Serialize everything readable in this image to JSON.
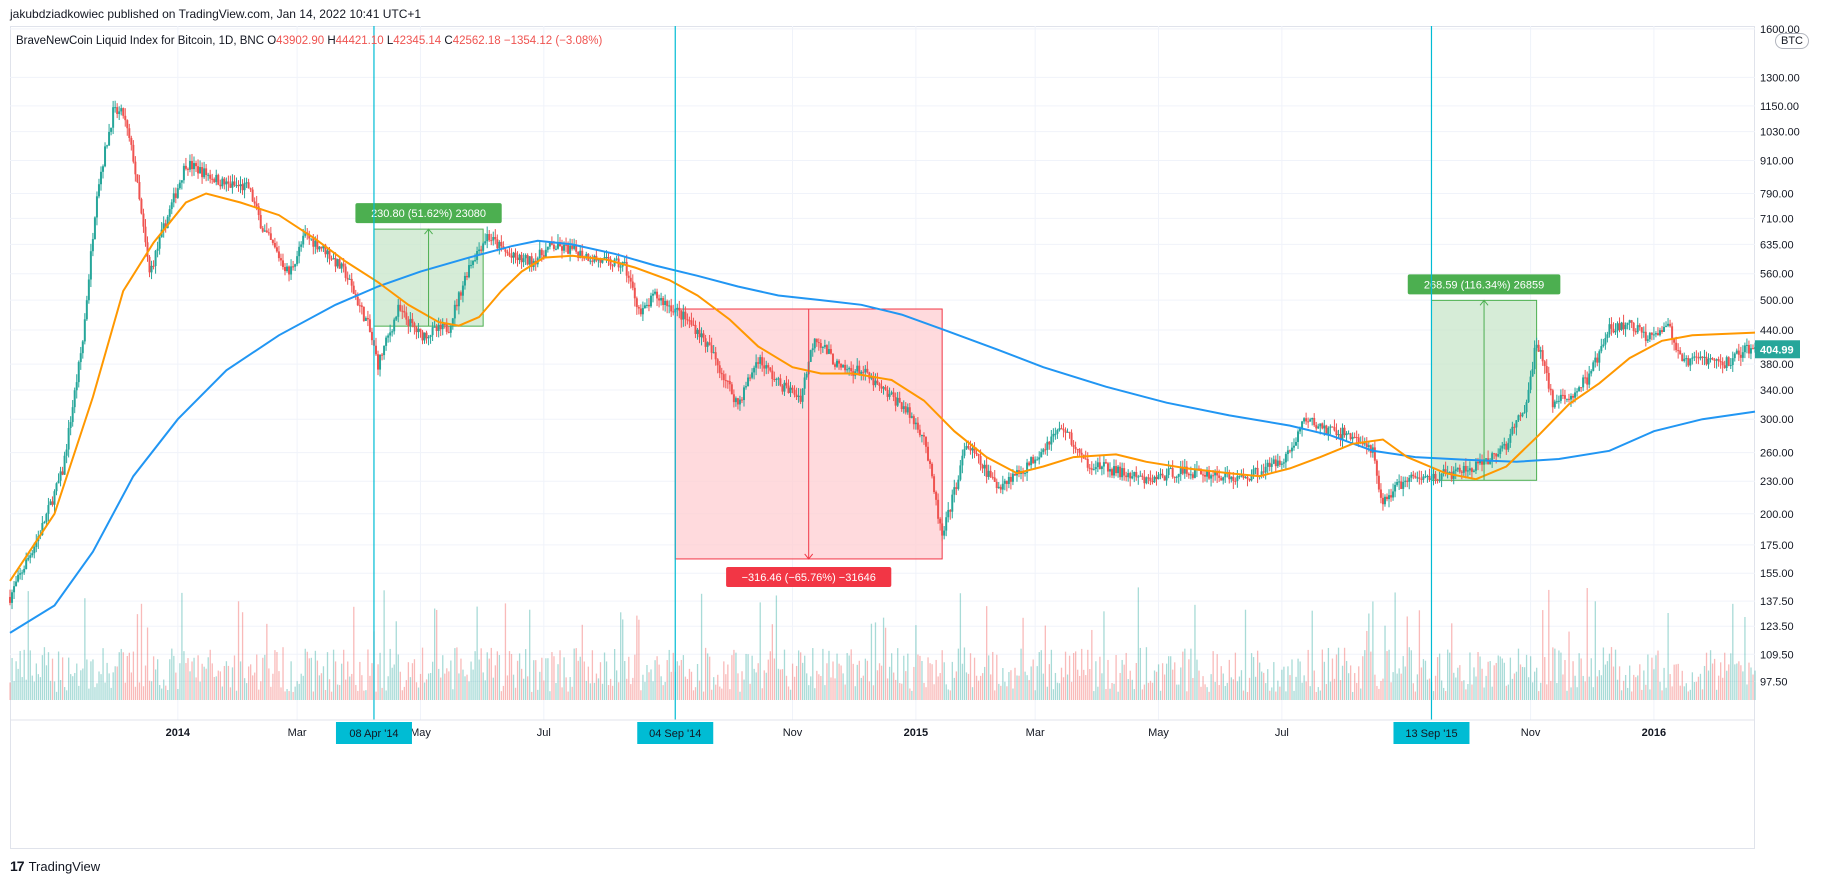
{
  "header": {
    "publisher": "jakubdziadkowiec published on TradingView.com, Jan 14, 2022 10:41 UTC+1",
    "symbol": "BraveNewCoin Liquid Index for Bitcoin, 1D, BNC",
    "open_label": "O",
    "open": "43902.90",
    "high_label": "H",
    "high": "44421.10",
    "low_label": "L",
    "low": "42345.14",
    "close_label": "C",
    "close": "42562.18",
    "change": "−1354.12 (−3.08%)"
  },
  "footer": {
    "brand_mark": "17",
    "brand": "TradingView"
  },
  "currency_tag": "BTC",
  "colors": {
    "ema_short": "#ff9800",
    "ema_long": "#2196f3",
    "up": "#26a69a",
    "down": "#ef5350",
    "vline": "#00bcd4",
    "gain_fill": "#c8e6c9",
    "loss_fill": "#ffcdd2",
    "gain_label": "#4caf50",
    "loss_label": "#f23645",
    "last_price_bg": "#26a69a"
  },
  "chart_data": {
    "type": "candlestick",
    "scale": "log",
    "x_range": [
      "2013-10-10",
      "2016-02-20"
    ],
    "y_range": [
      90,
      1620
    ],
    "y_ticks": [
      "1600.00",
      "1300.00",
      "1150.00",
      "1030.00",
      "910.00",
      "790.00",
      "710.00",
      "635.00",
      "560.00",
      "500.00",
      "440.00",
      "404.99",
      "380.00",
      "340.00",
      "300.00",
      "260.00",
      "230.00",
      "200.00",
      "175.00",
      "155.00",
      "137.50",
      "123.50",
      "109.50",
      "97.50"
    ],
    "y_tick_values": [
      1600,
      1300,
      1150,
      1030,
      910,
      790,
      710,
      635,
      560,
      500,
      440,
      380,
      340,
      300,
      260,
      230,
      200,
      175,
      155,
      137.5,
      123.5,
      109.5,
      97.5
    ],
    "x_ticks": [
      {
        "label": "2014",
        "date": "2014-01-01",
        "bold": true
      },
      {
        "label": "Mar",
        "date": "2014-03-01"
      },
      {
        "label": "May",
        "date": "2014-05-01"
      },
      {
        "label": "Jul",
        "date": "2014-07-01"
      },
      {
        "label": "Nov",
        "date": "2014-11-01"
      },
      {
        "label": "2015",
        "date": "2015-01-01",
        "bold": true
      },
      {
        "label": "Mar",
        "date": "2015-03-01"
      },
      {
        "label": "May",
        "date": "2015-05-01"
      },
      {
        "label": "Jul",
        "date": "2015-07-01"
      },
      {
        "label": "Nov",
        "date": "2015-11-01"
      },
      {
        "label": "2016",
        "date": "2016-01-01",
        "bold": true
      }
    ],
    "highlighted_dates": [
      {
        "label": "08 Apr '14",
        "date": "2014-04-08"
      },
      {
        "label": "04 Sep '14",
        "date": "2014-09-04"
      },
      {
        "label": "13 Sep '15",
        "date": "2015-09-13"
      }
    ],
    "price_path": [
      [
        "2013-10-10",
        140
      ],
      [
        "2013-10-25",
        185
      ],
      [
        "2013-11-05",
        240
      ],
      [
        "2013-11-15",
        420
      ],
      [
        "2013-11-22",
        800
      ],
      [
        "2013-11-30",
        1120
      ],
      [
        "2013-12-05",
        1110
      ],
      [
        "2013-12-10",
        920
      ],
      [
        "2013-12-18",
        560
      ],
      [
        "2013-12-25",
        680
      ],
      [
        "2014-01-05",
        900
      ],
      [
        "2014-01-15",
        860
      ],
      [
        "2014-01-25",
        820
      ],
      [
        "2014-02-05",
        810
      ],
      [
        "2014-02-12",
        680
      ],
      [
        "2014-02-25",
        560
      ],
      [
        "2014-03-05",
        660
      ],
      [
        "2014-03-15",
        620
      ],
      [
        "2014-03-25",
        560
      ],
      [
        "2014-04-05",
        450
      ],
      [
        "2014-04-10",
        380
      ],
      [
        "2014-04-20",
        480
      ],
      [
        "2014-05-01",
        430
      ],
      [
        "2014-05-15",
        445
      ],
      [
        "2014-05-25",
        580
      ],
      [
        "2014-06-03",
        660
      ],
      [
        "2014-06-15",
        600
      ],
      [
        "2014-06-25",
        590
      ],
      [
        "2014-07-05",
        630
      ],
      [
        "2014-07-15",
        620
      ],
      [
        "2014-07-30",
        590
      ],
      [
        "2014-08-10",
        580
      ],
      [
        "2014-08-18",
        470
      ],
      [
        "2014-08-25",
        510
      ],
      [
        "2014-09-04",
        480
      ],
      [
        "2014-09-15",
        440
      ],
      [
        "2014-09-22",
        400
      ],
      [
        "2014-10-05",
        320
      ],
      [
        "2014-10-15",
        390
      ],
      [
        "2014-10-25",
        350
      ],
      [
        "2014-11-05",
        330
      ],
      [
        "2014-11-12",
        430
      ],
      [
        "2014-11-25",
        370
      ],
      [
        "2014-12-05",
        370
      ],
      [
        "2014-12-15",
        340
      ],
      [
        "2014-12-25",
        320
      ],
      [
        "2015-01-05",
        280
      ],
      [
        "2015-01-14",
        180
      ],
      [
        "2015-01-20",
        220
      ],
      [
        "2015-01-26",
        270
      ],
      [
        "2015-02-10",
        225
      ],
      [
        "2015-02-25",
        245
      ],
      [
        "2015-03-10",
        280
      ],
      [
        "2015-03-15",
        290
      ],
      [
        "2015-03-25",
        250
      ],
      [
        "2015-04-10",
        240
      ],
      [
        "2015-04-25",
        230
      ],
      [
        "2015-05-10",
        240
      ],
      [
        "2015-05-25",
        238
      ],
      [
        "2015-06-10",
        232
      ],
      [
        "2015-06-25",
        245
      ],
      [
        "2015-07-05",
        260
      ],
      [
        "2015-07-12",
        300
      ],
      [
        "2015-07-25",
        285
      ],
      [
        "2015-08-05",
        280
      ],
      [
        "2015-08-15",
        260
      ],
      [
        "2015-08-19",
        210
      ],
      [
        "2015-08-30",
        230
      ],
      [
        "2015-09-13",
        235
      ],
      [
        "2015-09-25",
        238
      ],
      [
        "2015-10-10",
        248
      ],
      [
        "2015-10-20",
        270
      ],
      [
        "2015-10-30",
        320
      ],
      [
        "2015-11-04",
        420
      ],
      [
        "2015-11-08",
        380
      ],
      [
        "2015-11-12",
        320
      ],
      [
        "2015-11-20",
        330
      ],
      [
        "2015-11-30",
        360
      ],
      [
        "2015-12-10",
        440
      ],
      [
        "2015-12-20",
        450
      ],
      [
        "2015-12-28",
        430
      ],
      [
        "2016-01-08",
        450
      ],
      [
        "2016-01-15",
        380
      ],
      [
        "2016-01-25",
        390
      ],
      [
        "2016-02-05",
        380
      ],
      [
        "2016-02-15",
        405
      ]
    ],
    "ema_short_path": [
      [
        "2013-10-10",
        150
      ],
      [
        "2013-11-01",
        200
      ],
      [
        "2013-11-20",
        330
      ],
      [
        "2013-12-05",
        520
      ],
      [
        "2013-12-20",
        640
      ],
      [
        "2014-01-05",
        760
      ],
      [
        "2014-01-15",
        790
      ],
      [
        "2014-02-01",
        760
      ],
      [
        "2014-02-20",
        720
      ],
      [
        "2014-03-10",
        650
      ],
      [
        "2014-03-25",
        590
      ],
      [
        "2014-04-10",
        540
      ],
      [
        "2014-04-25",
        490
      ],
      [
        "2014-05-10",
        455
      ],
      [
        "2014-05-20",
        448
      ],
      [
        "2014-05-30",
        465
      ],
      [
        "2014-06-10",
        520
      ],
      [
        "2014-06-20",
        565
      ],
      [
        "2014-07-01",
        600
      ],
      [
        "2014-07-15",
        605
      ],
      [
        "2014-08-01",
        595
      ],
      [
        "2014-08-15",
        575
      ],
      [
        "2014-09-01",
        545
      ],
      [
        "2014-09-15",
        510
      ],
      [
        "2014-10-01",
        460
      ],
      [
        "2014-10-15",
        410
      ],
      [
        "2014-11-01",
        375
      ],
      [
        "2014-11-15",
        365
      ],
      [
        "2014-12-01",
        365
      ],
      [
        "2014-12-20",
        355
      ],
      [
        "2015-01-05",
        325
      ],
      [
        "2015-01-20",
        285
      ],
      [
        "2015-02-05",
        255
      ],
      [
        "2015-02-20",
        238
      ],
      [
        "2015-03-05",
        245
      ],
      [
        "2015-03-20",
        255
      ],
      [
        "2015-04-10",
        258
      ],
      [
        "2015-04-25",
        250
      ],
      [
        "2015-05-15",
        243
      ],
      [
        "2015-06-05",
        238
      ],
      [
        "2015-06-20",
        235
      ],
      [
        "2015-07-05",
        243
      ],
      [
        "2015-07-20",
        255
      ],
      [
        "2015-08-05",
        270
      ],
      [
        "2015-08-20",
        275
      ],
      [
        "2015-09-01",
        255
      ],
      [
        "2015-09-20",
        238
      ],
      [
        "2015-10-05",
        232
      ],
      [
        "2015-10-20",
        245
      ],
      [
        "2015-11-05",
        280
      ],
      [
        "2015-11-20",
        320
      ],
      [
        "2015-12-05",
        350
      ],
      [
        "2015-12-20",
        390
      ],
      [
        "2016-01-05",
        420
      ],
      [
        "2016-01-20",
        430
      ],
      [
        "2016-02-20",
        435
      ]
    ],
    "ema_long_path": [
      [
        "2013-10-10",
        120
      ],
      [
        "2013-11-01",
        135
      ],
      [
        "2013-11-20",
        170
      ],
      [
        "2013-12-10",
        235
      ],
      [
        "2014-01-01",
        300
      ],
      [
        "2014-01-25",
        370
      ],
      [
        "2014-02-20",
        430
      ],
      [
        "2014-03-20",
        490
      ],
      [
        "2014-04-10",
        530
      ],
      [
        "2014-05-01",
        565
      ],
      [
        "2014-05-25",
        600
      ],
      [
        "2014-06-15",
        630
      ],
      [
        "2014-06-28",
        645
      ],
      [
        "2014-07-15",
        635
      ],
      [
        "2014-08-05",
        610
      ],
      [
        "2014-08-25",
        580
      ],
      [
        "2014-09-15",
        555
      ],
      [
        "2014-10-05",
        530
      ],
      [
        "2014-10-25",
        510
      ],
      [
        "2014-11-15",
        500
      ],
      [
        "2014-12-05",
        490
      ],
      [
        "2014-12-25",
        470
      ],
      [
        "2015-01-15",
        440
      ],
      [
        "2015-02-10",
        405
      ],
      [
        "2015-03-05",
        375
      ],
      [
        "2015-04-05",
        345
      ],
      [
        "2015-05-05",
        322
      ],
      [
        "2015-06-05",
        305
      ],
      [
        "2015-07-05",
        292
      ],
      [
        "2015-07-25",
        280
      ],
      [
        "2015-08-15",
        262
      ],
      [
        "2015-09-05",
        255
      ],
      [
        "2015-10-01",
        252
      ],
      [
        "2015-10-25",
        250
      ],
      [
        "2015-11-15",
        253
      ],
      [
        "2015-12-10",
        262
      ],
      [
        "2016-01-01",
        285
      ],
      [
        "2016-01-25",
        300
      ],
      [
        "2016-02-20",
        310
      ]
    ],
    "measures": [
      {
        "label": "230.80 (51.62%) 23080",
        "from_date": "2014-04-08",
        "to_date": "2014-06-01",
        "low": 447.2,
        "high": 678.0,
        "direction": "up"
      },
      {
        "label": "−316.46 (−65.76%) −31646",
        "from_date": "2014-09-04",
        "to_date": "2015-01-14",
        "low": 164.8,
        "high": 481.3,
        "direction": "down"
      },
      {
        "label": "268.59 (116.34%) 26859",
        "from_date": "2015-09-13",
        "to_date": "2015-11-04",
        "low": 230.9,
        "high": 499.5,
        "direction": "up"
      }
    ],
    "last_price": "404.99"
  }
}
